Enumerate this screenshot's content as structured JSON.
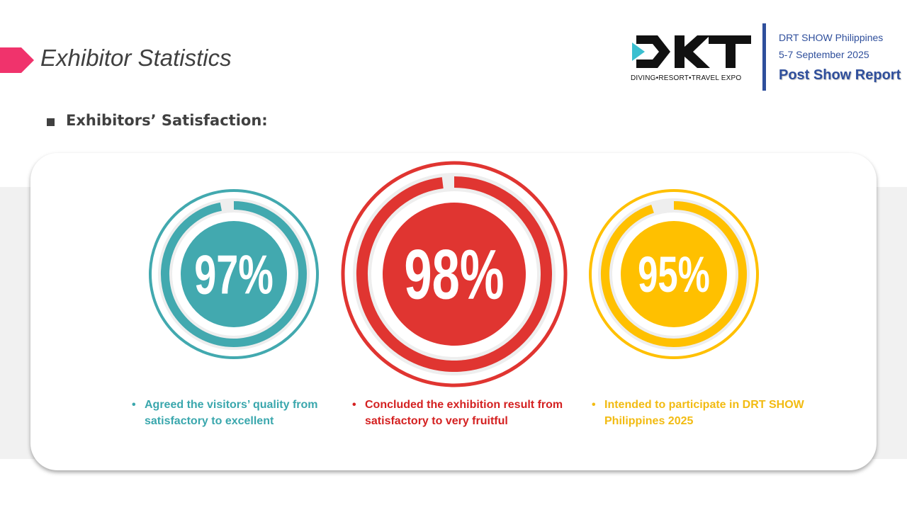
{
  "header": {
    "page_title": "Exhibitor Statistics",
    "logo_tagline": "DIVING•RESORT•TRAVEL EXPO",
    "show_name": "DRT SHOW Philippines",
    "show_dates": "5-7 September 2025",
    "report_title": "Post Show Report"
  },
  "section": {
    "heading": "Exhibitors’ Satisfaction:"
  },
  "stats": [
    {
      "value": "97%",
      "percent": 97,
      "color": "#42a9af",
      "text_color": "#3aa7ad",
      "caption": "Agreed the visitors’ quality from satisfactory to excellent"
    },
    {
      "value": "98%",
      "percent": 98,
      "color": "#e03531",
      "text_color": "#d42121",
      "caption": "Concluded the exhibition result from satisfactory to very fruitful"
    },
    {
      "value": "95%",
      "percent": 95,
      "color": "#ffc000",
      "text_color": "#f2bb12",
      "caption": "Intended to participate in DRT SHOW Philippines 2025"
    }
  ],
  "colors": {
    "accent_pink": "#f0336c",
    "brand_blue": "#2f4f9c",
    "title_gray": "#404040",
    "track_gray": "#eeeeee"
  }
}
